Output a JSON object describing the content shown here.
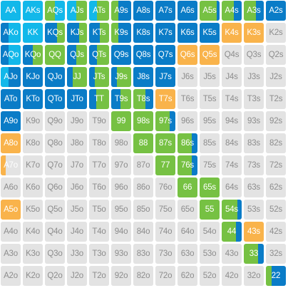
{
  "colors": {
    "blue": "#0a7cc7",
    "cyan": "#12b8ea",
    "green": "#76c143",
    "orange": "#f9b34b",
    "gray": "#e3e3e3",
    "text_light": "#ffffff",
    "text_gray": "#8d8d8d"
  },
  "hands": [
    [
      "AA",
      "AKs",
      "AQs",
      "AJs",
      "ATs",
      "A9s",
      "A8s",
      "A7s",
      "A6s",
      "A5s",
      "A4s",
      "A3s",
      "A2s"
    ],
    [
      "AKo",
      "KK",
      "KQs",
      "KJs",
      "KTs",
      "K9s",
      "K8s",
      "K7s",
      "K6s",
      "K5s",
      "K4s",
      "K3s",
      "K2s"
    ],
    [
      "AQo",
      "KQo",
      "QQ",
      "QJs",
      "QTs",
      "Q9s",
      "Q8s",
      "Q7s",
      "Q6s",
      "Q5s",
      "Q4s",
      "Q3s",
      "Q2s"
    ],
    [
      "AJo",
      "KJo",
      "QJo",
      "JJ",
      "JTs",
      "J9s",
      "J8s",
      "J7s",
      "J6s",
      "J5s",
      "J4s",
      "J3s",
      "J2s"
    ],
    [
      "ATo",
      "KTo",
      "QTo",
      "JTo",
      "TT",
      "T9s",
      "T8s",
      "T7s",
      "T6s",
      "T5s",
      "T4s",
      "T3s",
      "T2s"
    ],
    [
      "A9o",
      "K9o",
      "Q9o",
      "J9o",
      "T9o",
      "99",
      "98s",
      "97s",
      "96s",
      "95s",
      "94s",
      "93s",
      "92s"
    ],
    [
      "A8o",
      "K8o",
      "Q8o",
      "J8o",
      "T8o",
      "98o",
      "88",
      "87s",
      "86s",
      "85s",
      "84s",
      "83s",
      "82s"
    ],
    [
      "A7o",
      "K7o",
      "Q7o",
      "J7o",
      "T7o",
      "97o",
      "87o",
      "77",
      "76s",
      "75s",
      "74s",
      "73s",
      "72s"
    ],
    [
      "A6o",
      "K6o",
      "Q6o",
      "J6o",
      "T6o",
      "96o",
      "86o",
      "76o",
      "66",
      "65s",
      "64s",
      "63s",
      "62s"
    ],
    [
      "A5o",
      "K5o",
      "Q5o",
      "J5o",
      "T5o",
      "95o",
      "85o",
      "75o",
      "65o",
      "55",
      "54s",
      "53s",
      "52s"
    ],
    [
      "A4o",
      "K4o",
      "Q4o",
      "J4o",
      "T4o",
      "94o",
      "84o",
      "74o",
      "64o",
      "54o",
      "44",
      "43s",
      "42s"
    ],
    [
      "A3o",
      "K3o",
      "Q3o",
      "J3o",
      "T3o",
      "93o",
      "83o",
      "73o",
      "63o",
      "53o",
      "43o",
      "33",
      "32s"
    ],
    [
      "A2o",
      "K2o",
      "Q2o",
      "J2o",
      "T2o",
      "92o",
      "82o",
      "72o",
      "62o",
      "52o",
      "42o",
      "32o",
      "22"
    ]
  ],
  "frequencies": [
    [
      {
        "cyan": 1
      },
      {
        "cyan": 1
      },
      {
        "green": 0.5,
        "cyan": 0.5
      },
      {
        "cyan": 0.45,
        "green": 0.55
      },
      {
        "cyan": 0.4,
        "green": 0.6
      },
      {
        "green": 0.35,
        "blue": 0.65
      },
      {
        "blue": 1
      },
      {
        "blue": 1
      },
      {
        "blue": 1
      },
      {
        "green": 0.85,
        "blue": 0.15
      },
      {
        "green": 0.6,
        "blue": 0.4
      },
      {
        "green": 0.6,
        "blue": 0.4
      },
      {
        "blue": 1
      }
    ],
    [
      {
        "blue": 0.4,
        "cyan": 0.6
      },
      {
        "cyan": 1
      },
      {
        "blue": 0.6,
        "green": 0.4
      },
      {
        "blue": 0.6,
        "green": 0.4
      },
      {
        "blue": 0.55,
        "green": 0.45
      },
      {
        "green": 0.35,
        "blue": 0.65
      },
      {
        "blue": 1
      },
      {
        "blue": 1
      },
      {
        "blue": 1
      },
      {
        "blue": 1
      },
      {
        "orange": 1
      },
      {
        "orange": 1
      },
      {
        "gray": 1
      }
    ],
    [
      {
        "blue": 0.4,
        "cyan": 0.6
      },
      {
        "blue": 0.5,
        "green": 0.5
      },
      {
        "green": 1
      },
      {
        "blue": 0.45,
        "green": 0.55
      },
      {
        "blue": 0.4,
        "green": 0.6
      },
      {
        "blue": 1
      },
      {
        "blue": 1
      },
      {
        "blue": 1
      },
      {
        "orange": 1
      },
      {
        "orange": 1
      },
      {
        "gray": 1
      },
      {
        "gray": 1
      },
      {
        "gray": 1
      }
    ],
    [
      {
        "cyan": 0.4,
        "blue": 0.6
      },
      {
        "blue": 1
      },
      {
        "blue": 1
      },
      {
        "blue": 0.3,
        "green": 0.7
      },
      {
        "blue": 0.3,
        "green": 0.7
      },
      {
        "blue": 0.3,
        "green": 0.7
      },
      {
        "blue": 1
      },
      {
        "blue": 1
      },
      {
        "gray": 1
      },
      {
        "gray": 1
      },
      {
        "gray": 1
      },
      {
        "gray": 1
      },
      {
        "gray": 1
      }
    ],
    [
      {
        "blue": 1
      },
      {
        "blue": 1
      },
      {
        "blue": 1
      },
      {
        "blue": 1
      },
      {
        "blue": 0.35,
        "green": 0.65
      },
      {
        "blue": 0.45,
        "green": 0.55
      },
      {
        "green": 0.6,
        "blue": 0.4
      },
      {
        "orange": 1
      },
      {
        "gray": 1
      },
      {
        "gray": 1
      },
      {
        "gray": 1
      },
      {
        "gray": 1
      },
      {
        "gray": 1
      }
    ],
    [
      {
        "blue": 1
      },
      {
        "gray": 1
      },
      {
        "gray": 1
      },
      {
        "gray": 1
      },
      {
        "gray": 1
      },
      {
        "green": 1
      },
      {
        "green": 1
      },
      {
        "green": 0.7,
        "blue": 0.3
      },
      {
        "gray": 1
      },
      {
        "gray": 1
      },
      {
        "gray": 1
      },
      {
        "gray": 1
      },
      {
        "gray": 1
      }
    ],
    [
      {
        "orange": 1
      },
      {
        "gray": 1
      },
      {
        "gray": 1
      },
      {
        "gray": 1
      },
      {
        "gray": 1
      },
      {
        "gray": 1
      },
      {
        "green": 1
      },
      {
        "green": 1
      },
      {
        "green": 0.7,
        "blue": 0.3
      },
      {
        "gray": 1
      },
      {
        "gray": 1
      },
      {
        "gray": 1
      },
      {
        "gray": 1
      }
    ],
    [
      {
        "orange": 0.25,
        "gray": 0.75
      },
      {
        "gray": 1
      },
      {
        "gray": 1
      },
      {
        "gray": 1
      },
      {
        "gray": 1
      },
      {
        "gray": 1
      },
      {
        "gray": 1
      },
      {
        "green": 1
      },
      {
        "green": 0.7,
        "blue": 0.3
      },
      {
        "gray": 1
      },
      {
        "gray": 1
      },
      {
        "gray": 1
      },
      {
        "gray": 1
      }
    ],
    [
      {
        "gray": 1
      },
      {
        "gray": 1
      },
      {
        "gray": 1
      },
      {
        "gray": 1
      },
      {
        "gray": 1
      },
      {
        "gray": 1
      },
      {
        "gray": 1
      },
      {
        "gray": 1
      },
      {
        "green": 1
      },
      {
        "green": 1
      },
      {
        "gray": 1
      },
      {
        "gray": 1
      },
      {
        "gray": 1
      }
    ],
    [
      {
        "orange": 1
      },
      {
        "gray": 1
      },
      {
        "gray": 1
      },
      {
        "gray": 1
      },
      {
        "gray": 1
      },
      {
        "gray": 1
      },
      {
        "gray": 1
      },
      {
        "gray": 1
      },
      {
        "gray": 1
      },
      {
        "green": 1
      },
      {
        "green": 0.8,
        "blue": 0.2
      },
      {
        "gray": 1
      },
      {
        "gray": 1
      }
    ],
    [
      {
        "gray": 1
      },
      {
        "gray": 1
      },
      {
        "gray": 1
      },
      {
        "gray": 1
      },
      {
        "gray": 1
      },
      {
        "gray": 1
      },
      {
        "gray": 1
      },
      {
        "gray": 1
      },
      {
        "gray": 1
      },
      {
        "gray": 1
      },
      {
        "green": 0.7,
        "blue": 0.3
      },
      {
        "orange": 1
      },
      {
        "gray": 1
      }
    ],
    [
      {
        "gray": 1
      },
      {
        "gray": 1
      },
      {
        "gray": 1
      },
      {
        "gray": 1
      },
      {
        "gray": 1
      },
      {
        "gray": 1
      },
      {
        "gray": 1
      },
      {
        "gray": 1
      },
      {
        "gray": 1
      },
      {
        "gray": 1
      },
      {
        "gray": 1
      },
      {
        "green": 0.7,
        "blue": 0.3
      },
      {
        "gray": 1
      }
    ],
    [
      {
        "gray": 1
      },
      {
        "gray": 1
      },
      {
        "gray": 1
      },
      {
        "gray": 1
      },
      {
        "gray": 1
      },
      {
        "gray": 1
      },
      {
        "gray": 1
      },
      {
        "gray": 1
      },
      {
        "gray": 1
      },
      {
        "gray": 1
      },
      {
        "gray": 1
      },
      {
        "gray": 1
      },
      {
        "green": 0.3,
        "blue": 0.7
      }
    ]
  ]
}
